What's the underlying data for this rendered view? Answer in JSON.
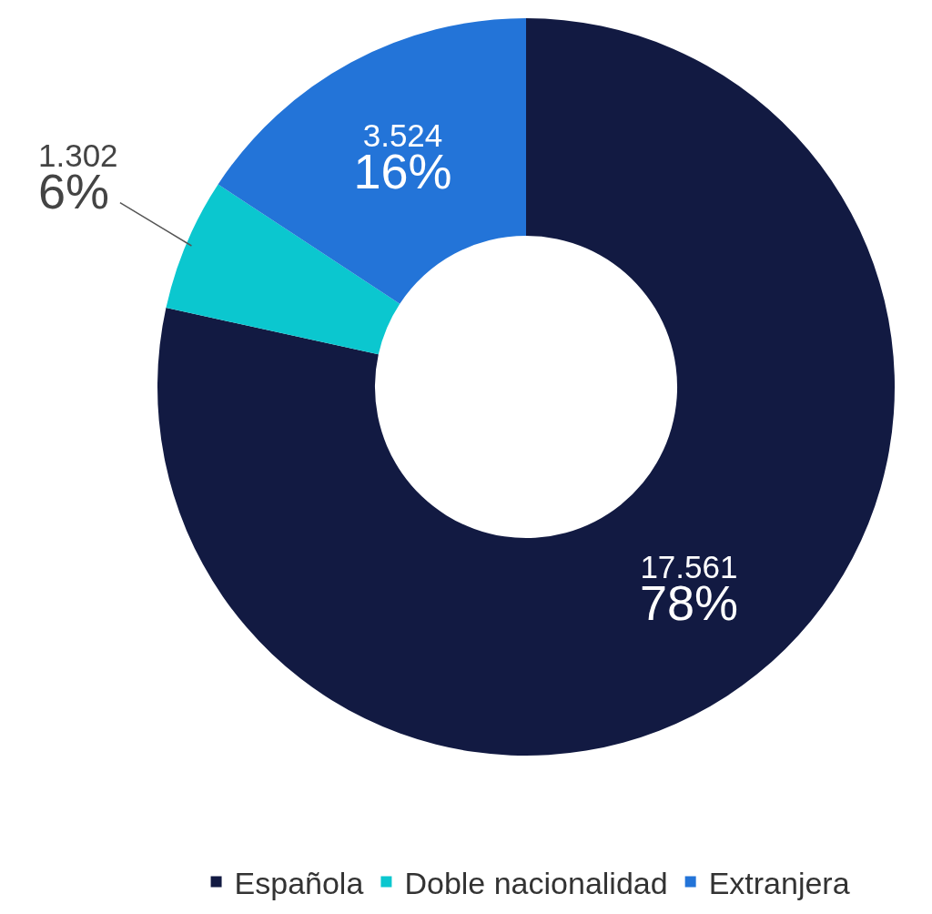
{
  "chart_data": {
    "type": "donut",
    "categories": [
      "Española",
      "Doble nacionalidad",
      "Extranjera"
    ],
    "values": [
      17561,
      1302,
      3524
    ],
    "colors": [
      "#121a42",
      "#0bc7cf",
      "#2374d8"
    ],
    "value_labels": [
      "17.561\n78%",
      "1.302\n6%",
      "3.524\n16%"
    ],
    "legend": "bottom"
  }
}
